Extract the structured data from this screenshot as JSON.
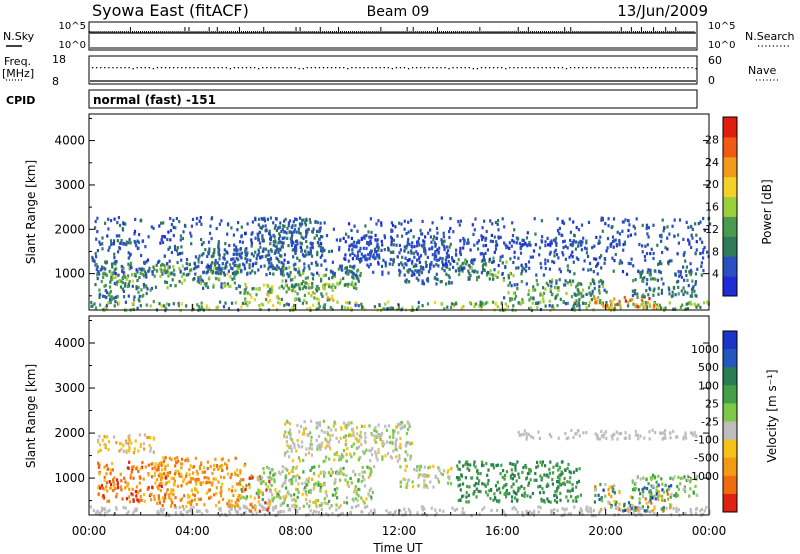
{
  "header": {
    "station": "Syowa East (fitACF)",
    "beam": "Beam 09",
    "date": "13/Jun/2009"
  },
  "panels": {
    "nsky": {
      "label": "N.Sky",
      "left_ticks": [
        "10^5",
        "10^0"
      ],
      "right_ticks": [
        "10^5",
        "10^0"
      ],
      "right_label": "N.Search"
    },
    "freq": {
      "label_line1": "Freq.",
      "label_line2": "[MHz]",
      "left_ticks": [
        "18",
        "8"
      ],
      "right_ticks": [
        "60",
        "0"
      ],
      "right_label": "Nave"
    },
    "cpid": {
      "label": "CPID",
      "value": "normal (fast) -151"
    }
  },
  "colors": {
    "power_scale": [
      "#1f2bd6",
      "#2a4fc2",
      "#2e7a5a",
      "#4a9a50",
      "#9bcf3a",
      "#f2d12a",
      "#f29a1a",
      "#f05a14",
      "#e01e10"
    ],
    "velocity_scale": [
      "#1a35c8",
      "#2456c0",
      "#2a7d52",
      "#43a047",
      "#7ec84a",
      "#bdbdbd",
      "#f5c219",
      "#f29a12",
      "#f06a10",
      "#e02010"
    ]
  },
  "chart_data": [
    {
      "type": "heatmap",
      "name": "power",
      "ylabel": "Slant Range [km]",
      "yticks": [
        1000,
        2000,
        3000,
        4000
      ],
      "ylim": [
        180,
        4600
      ],
      "colorbar": {
        "label": "Power [dB]",
        "ticks": [
          "4",
          "8",
          "12",
          "16",
          "20",
          "24",
          "28"
        ],
        "range": [
          0,
          32
        ]
      },
      "xlim_hours": [
        0,
        24
      ],
      "bands": [
        {
          "start": 0.0,
          "end": 24.0,
          "rmin": 200,
          "rmax": 400,
          "vmin": 6,
          "vmax": 20
        },
        {
          "start": 0.2,
          "end": 2.5,
          "rmin": 400,
          "rmax": 1300,
          "vmin": 4,
          "vmax": 14
        },
        {
          "start": 0.8,
          "end": 1.8,
          "rmin": 850,
          "rmax": 1200,
          "vmin": 10,
          "vmax": 20
        },
        {
          "start": 0.3,
          "end": 2.2,
          "rmin": 1600,
          "rmax": 1800,
          "vmin": 3,
          "vmax": 10
        },
        {
          "start": 2.5,
          "end": 5.8,
          "rmin": 700,
          "rmax": 1300,
          "vmin": 6,
          "vmax": 18
        },
        {
          "start": 4.5,
          "end": 7.5,
          "rmin": 1000,
          "rmax": 1600,
          "vmin": 4,
          "vmax": 10
        },
        {
          "start": 6.5,
          "end": 9.0,
          "rmin": 1400,
          "rmax": 2300,
          "vmin": 4,
          "vmax": 10
        },
        {
          "start": 7.3,
          "end": 10.5,
          "rmin": 700,
          "rmax": 1200,
          "vmin": 6,
          "vmax": 16
        },
        {
          "start": 5.8,
          "end": 9.5,
          "rmin": 400,
          "rmax": 800,
          "vmin": 8,
          "vmax": 22
        },
        {
          "start": 10.0,
          "end": 14.0,
          "rmin": 1200,
          "rmax": 1900,
          "vmin": 3,
          "vmax": 8
        },
        {
          "start": 12.0,
          "end": 14.0,
          "rmin": 800,
          "rmax": 1200,
          "vmin": 4,
          "vmax": 10
        },
        {
          "start": 14.2,
          "end": 16.5,
          "rmin": 900,
          "rmax": 1400,
          "vmin": 6,
          "vmax": 16
        },
        {
          "start": 16.0,
          "end": 20.0,
          "rmin": 350,
          "rmax": 900,
          "vmin": 6,
          "vmax": 16
        },
        {
          "start": 14.3,
          "end": 20.5,
          "rmin": 1650,
          "rmax": 1800,
          "vmin": 3,
          "vmax": 8
        },
        {
          "start": 19.5,
          "end": 22.0,
          "rmin": 250,
          "rmax": 500,
          "vmin": 16,
          "vmax": 30
        },
        {
          "start": 21.0,
          "end": 23.5,
          "rmin": 500,
          "rmax": 1100,
          "vmin": 4,
          "vmax": 12
        },
        {
          "start": 0.0,
          "end": 24.0,
          "rmin": 1000,
          "rmax": 2300,
          "vmin": 3,
          "vmax": 8
        }
      ]
    },
    {
      "type": "heatmap",
      "name": "velocity",
      "ylabel": "Slant Range [km]",
      "yticks": [
        1000,
        2000,
        3000,
        4000
      ],
      "ylim": [
        180,
        4600
      ],
      "xlabel": "Time UT",
      "xticks": [
        "00:00",
        "04:00",
        "08:00",
        "12:00",
        "16:00",
        "20:00",
        "00:00"
      ],
      "xlim_hours": [
        0,
        24
      ],
      "colorbar": {
        "label": "Velocity [m s⁻¹]",
        "ticks": [
          "1000",
          "500",
          "100",
          "25",
          "-25",
          "-100",
          "-500",
          "-1000"
        ]
      },
      "bands": [
        {
          "start": 0.0,
          "end": 24.0,
          "rmin": 200,
          "rmax": 400,
          "cmin": 5,
          "cmax": 5
        },
        {
          "start": 0.3,
          "end": 3.0,
          "rmin": 500,
          "rmax": 1400,
          "cmin": 6,
          "cmax": 9
        },
        {
          "start": 2.5,
          "end": 6.0,
          "rmin": 400,
          "rmax": 1500,
          "cmin": 6,
          "cmax": 8
        },
        {
          "start": 5.8,
          "end": 7.0,
          "rmin": 300,
          "rmax": 1100,
          "cmin": 3,
          "cmax": 9
        },
        {
          "start": 6.5,
          "end": 11.0,
          "rmin": 400,
          "rmax": 1300,
          "cmin": 3,
          "cmax": 6
        },
        {
          "start": 7.5,
          "end": 12.5,
          "rmin": 1400,
          "rmax": 2300,
          "cmin": 4,
          "cmax": 6
        },
        {
          "start": 0.3,
          "end": 2.5,
          "rmin": 1600,
          "rmax": 2000,
          "cmin": 5,
          "cmax": 7
        },
        {
          "start": 12.0,
          "end": 14.0,
          "rmin": 800,
          "rmax": 1300,
          "cmin": 4,
          "cmax": 6
        },
        {
          "start": 14.2,
          "end": 19.0,
          "rmin": 500,
          "rmax": 1400,
          "cmin": 2,
          "cmax": 3
        },
        {
          "start": 16.5,
          "end": 23.5,
          "rmin": 1900,
          "rmax": 2100,
          "cmin": 5,
          "cmax": 5
        },
        {
          "start": 19.5,
          "end": 22.5,
          "rmin": 300,
          "rmax": 900,
          "cmin": 0,
          "cmax": 8
        },
        {
          "start": 21.0,
          "end": 23.5,
          "rmin": 600,
          "rmax": 1100,
          "cmin": 3,
          "cmax": 5
        }
      ]
    }
  ]
}
